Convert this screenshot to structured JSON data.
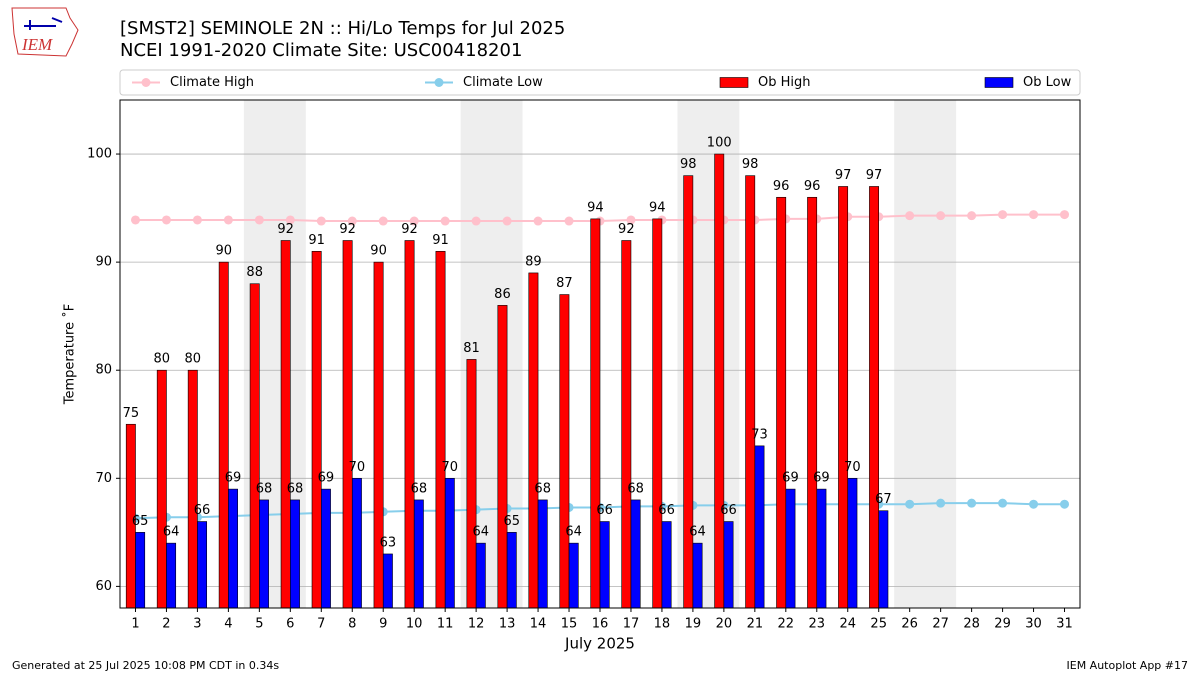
{
  "chart_data": {
    "type": "bar",
    "title": "[SMST2] SEMINOLE 2N :: Hi/Lo Temps for Jul 2025",
    "subtitle": "NCEI 1991-2020 Climate Site: USC00418201",
    "logo_text": "IEM",
    "xlabel": "July 2025",
    "ylabel": "Temperature ˚F",
    "footer_left": "Generated at 25 Jul 2025 10:08 PM CDT in 0.34s",
    "footer_right": "IEM Autoplot App #17",
    "x": [
      1,
      2,
      3,
      4,
      5,
      6,
      7,
      8,
      9,
      10,
      11,
      12,
      13,
      14,
      15,
      16,
      17,
      18,
      19,
      20,
      21,
      22,
      23,
      24,
      25,
      26,
      27,
      28,
      29,
      30,
      31
    ],
    "xlim": [
      0.5,
      31.5
    ],
    "xticks": [
      1,
      2,
      3,
      4,
      5,
      6,
      7,
      8,
      9,
      10,
      11,
      12,
      13,
      14,
      15,
      16,
      17,
      18,
      19,
      20,
      21,
      22,
      23,
      24,
      25,
      26,
      27,
      28,
      29,
      30,
      31
    ],
    "ylim": [
      58,
      105
    ],
    "yticks": [
      60,
      70,
      80,
      90,
      100
    ],
    "grid": true,
    "shaded_ranges": [
      [
        4.5,
        6.5
      ],
      [
        11.5,
        13.5
      ],
      [
        18.5,
        20.5
      ],
      [
        25.5,
        27.5
      ]
    ],
    "shade_color": "#eeeeee",
    "legend": "top",
    "series": [
      {
        "name": "Climate High",
        "type": "line",
        "color": "#ffc0cb",
        "values": [
          93.9,
          93.9,
          93.9,
          93.9,
          93.9,
          93.9,
          93.8,
          93.8,
          93.8,
          93.8,
          93.8,
          93.8,
          93.8,
          93.8,
          93.8,
          93.8,
          93.9,
          93.9,
          93.9,
          93.9,
          93.9,
          94.0,
          94.0,
          94.2,
          94.2,
          94.3,
          94.3,
          94.3,
          94.4,
          94.4,
          94.4
        ]
      },
      {
        "name": "Climate Low",
        "type": "line",
        "color": "#87ceeb",
        "values": [
          66.3,
          66.4,
          66.4,
          66.5,
          66.6,
          66.7,
          66.8,
          66.8,
          66.9,
          67.0,
          67.0,
          67.1,
          67.2,
          67.2,
          67.3,
          67.3,
          67.4,
          67.4,
          67.5,
          67.5,
          67.5,
          67.6,
          67.6,
          67.6,
          67.6,
          67.6,
          67.7,
          67.7,
          67.7,
          67.6,
          67.6
        ]
      },
      {
        "name": "Ob High",
        "type": "bar",
        "color": "#ff0000",
        "values": [
          75,
          80,
          80,
          90,
          88,
          92,
          91,
          92,
          90,
          92,
          91,
          81,
          86,
          89,
          87,
          94,
          92,
          94,
          98,
          100,
          98,
          96,
          96,
          97,
          97,
          null,
          null,
          null,
          null,
          null,
          null
        ]
      },
      {
        "name": "Ob Low",
        "type": "bar",
        "color": "#0000ff",
        "values": [
          65,
          64,
          66,
          69,
          68,
          68,
          69,
          70,
          63,
          68,
          70,
          64,
          65,
          68,
          64,
          66,
          68,
          66,
          64,
          66,
          73,
          69,
          69,
          70,
          67,
          null,
          null,
          null,
          null,
          null,
          null
        ]
      }
    ]
  }
}
